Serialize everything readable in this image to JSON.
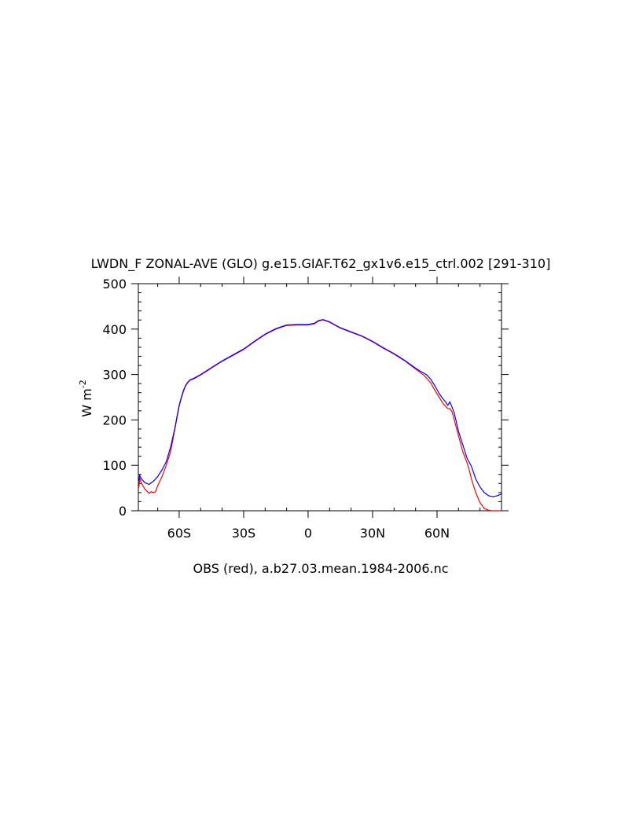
{
  "chart_data": {
    "type": "line",
    "title": "LWDN_F ZONAL-AVE (GLO) g.e15.GIAF.T62_gx1v6.e15_ctrl.002 [291-310]",
    "xlabel": "OBS (red), a.b27.03.mean.1984-2006.nc",
    "ylabel": "W m-2",
    "ylabel_main": "W m",
    "ylabel_sup": "-2",
    "xlim": [
      -79,
      90
    ],
    "ylim": [
      0,
      500
    ],
    "x_ticks": [
      -60,
      -30,
      0,
      30,
      60
    ],
    "x_tick_labels": [
      "60S",
      "30S",
      "0",
      "30N",
      "60N"
    ],
    "y_ticks": [
      0,
      100,
      200,
      300,
      400,
      500
    ],
    "y_tick_labels": [
      "0",
      "100",
      "200",
      "300",
      "400",
      "500"
    ],
    "grid": false,
    "series": [
      {
        "color": "#ff0000",
        "points": [
          [
            -78.8,
            50
          ],
          [
            -78.3,
            72
          ],
          [
            -77.5,
            60
          ],
          [
            -76,
            48
          ],
          [
            -75,
            43
          ],
          [
            -74,
            38
          ],
          [
            -73,
            42
          ],
          [
            -72,
            40
          ],
          [
            -71,
            42
          ],
          [
            -70,
            55
          ],
          [
            -68,
            75
          ],
          [
            -66,
            100
          ],
          [
            -64,
            130
          ],
          [
            -62,
            180
          ],
          [
            -61,
            205
          ],
          [
            -60,
            230
          ],
          [
            -59,
            248
          ],
          [
            -58,
            263
          ],
          [
            -57,
            275
          ],
          [
            -56,
            282
          ],
          [
            -55,
            287
          ],
          [
            -53,
            291
          ],
          [
            -50,
            299
          ],
          [
            -45,
            314
          ],
          [
            -40,
            329
          ],
          [
            -35,
            342
          ],
          [
            -30,
            355
          ],
          [
            -25,
            372
          ],
          [
            -20,
            388
          ],
          [
            -15,
            400
          ],
          [
            -10,
            408
          ],
          [
            -5,
            409
          ],
          [
            0,
            409
          ],
          [
            3,
            412
          ],
          [
            5,
            418
          ],
          [
            7,
            420
          ],
          [
            10,
            415
          ],
          [
            15,
            402
          ],
          [
            20,
            393
          ],
          [
            25,
            384
          ],
          [
            30,
            372
          ],
          [
            35,
            358
          ],
          [
            40,
            345
          ],
          [
            45,
            330
          ],
          [
            50,
            312
          ],
          [
            54,
            298
          ],
          [
            57,
            282
          ],
          [
            59,
            265
          ],
          [
            61,
            250
          ],
          [
            63,
            235
          ],
          [
            64,
            230
          ],
          [
            65,
            225
          ],
          [
            66,
            225
          ],
          [
            67,
            218
          ],
          [
            68,
            200
          ],
          [
            70,
            165
          ],
          [
            72,
            130
          ],
          [
            74,
            105
          ],
          [
            75,
            90
          ],
          [
            76,
            70
          ],
          [
            78,
            40
          ],
          [
            80,
            18
          ],
          [
            82,
            5
          ],
          [
            84,
            1
          ],
          [
            86,
            0
          ],
          [
            90,
            0
          ]
        ]
      },
      {
        "color": "#0000ff",
        "points": [
          [
            -78.8,
            65
          ],
          [
            -78.4,
            78
          ],
          [
            -77.5,
            70
          ],
          [
            -76,
            62
          ],
          [
            -74,
            58
          ],
          [
            -72,
            65
          ],
          [
            -70,
            75
          ],
          [
            -68,
            90
          ],
          [
            -66,
            108
          ],
          [
            -64,
            140
          ],
          [
            -62,
            182
          ],
          [
            -61,
            208
          ],
          [
            -60,
            232
          ],
          [
            -59,
            250
          ],
          [
            -58,
            265
          ],
          [
            -57,
            276
          ],
          [
            -56,
            283
          ],
          [
            -55,
            288
          ],
          [
            -53,
            292
          ],
          [
            -50,
            300
          ],
          [
            -45,
            315
          ],
          [
            -40,
            330
          ],
          [
            -35,
            343
          ],
          [
            -30,
            356
          ],
          [
            -25,
            373
          ],
          [
            -20,
            389
          ],
          [
            -15,
            401
          ],
          [
            -10,
            409
          ],
          [
            -5,
            410
          ],
          [
            0,
            410
          ],
          [
            3,
            413
          ],
          [
            5,
            419
          ],
          [
            7,
            421
          ],
          [
            10,
            416
          ],
          [
            15,
            403
          ],
          [
            20,
            394
          ],
          [
            25,
            385
          ],
          [
            30,
            373
          ],
          [
            35,
            359
          ],
          [
            40,
            346
          ],
          [
            45,
            331
          ],
          [
            50,
            314
          ],
          [
            53,
            305
          ],
          [
            55,
            300
          ],
          [
            57,
            290
          ],
          [
            59,
            275
          ],
          [
            61,
            258
          ],
          [
            63,
            245
          ],
          [
            64,
            240
          ],
          [
            65,
            232
          ],
          [
            66,
            240
          ],
          [
            67,
            228
          ],
          [
            68,
            215
          ],
          [
            70,
            175
          ],
          [
            72,
            145
          ],
          [
            74,
            115
          ],
          [
            76,
            98
          ],
          [
            78,
            70
          ],
          [
            80,
            52
          ],
          [
            82,
            40
          ],
          [
            84,
            33
          ],
          [
            86,
            31
          ],
          [
            88,
            33
          ],
          [
            90,
            37
          ]
        ]
      }
    ]
  }
}
